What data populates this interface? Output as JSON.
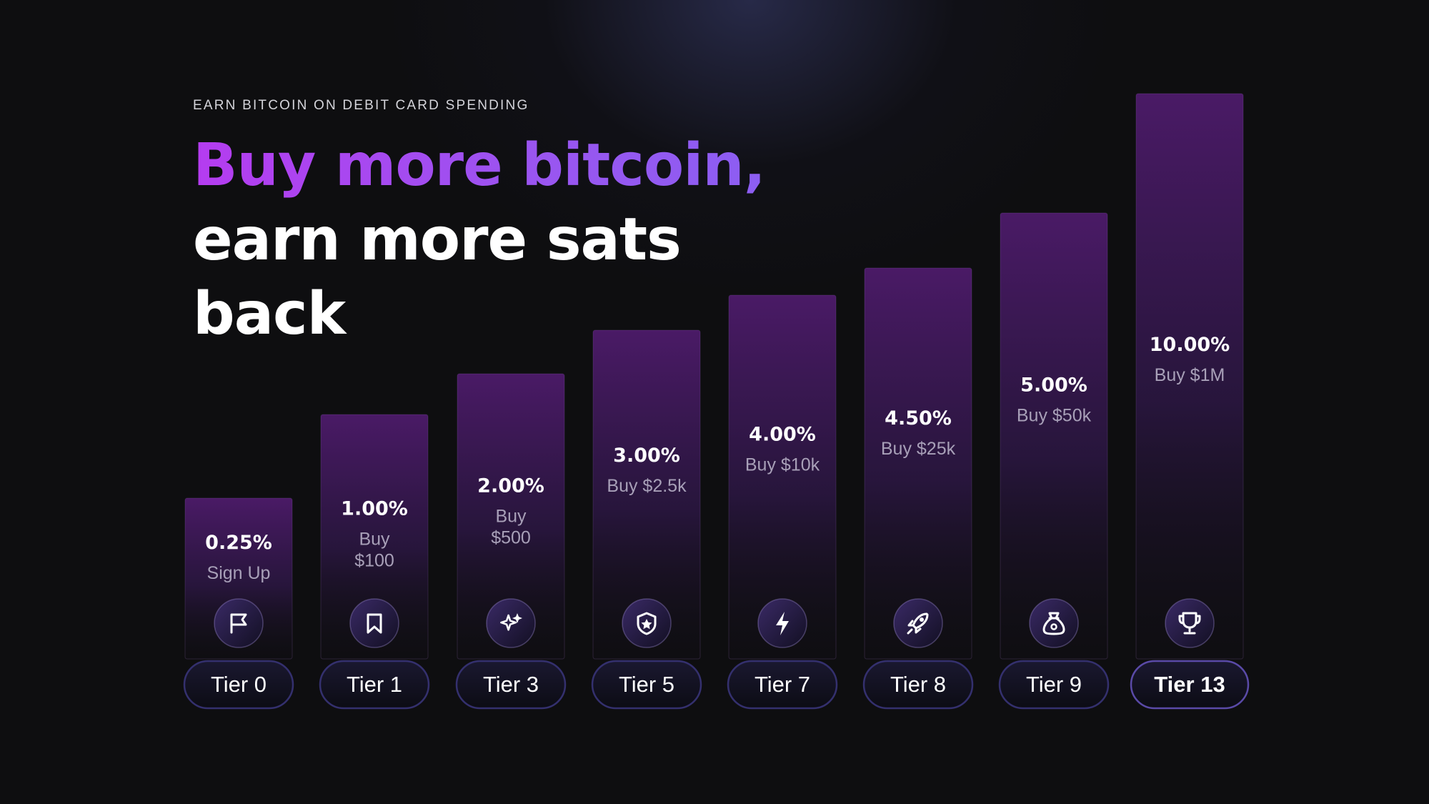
{
  "header": {
    "eyebrow": "EARN BITCOIN ON DEBIT CARD SPENDING",
    "headline_accent": "Buy more bitcoin,",
    "headline_line2": "earn more sats",
    "headline_line3": "back"
  },
  "colors": {
    "background": "#0e0e10",
    "accent_purple": "#a94af0",
    "bar_top": "#4a1a66",
    "pill_border": "#3a3580",
    "label_muted": "#a8a0b8"
  },
  "chart_data": {
    "type": "bar",
    "categories": [
      "Tier 0",
      "Tier 1",
      "Tier 3",
      "Tier 5",
      "Tier 7",
      "Tier 8",
      "Tier 9",
      "Tier 13"
    ],
    "values": [
      0.25,
      1.0,
      2.0,
      3.0,
      4.0,
      4.5,
      5.0,
      10.0
    ],
    "value_labels": [
      "0.25%",
      "1.00%",
      "2.00%",
      "3.00%",
      "4.00%",
      "4.50%",
      "5.00%",
      "10.00%"
    ],
    "requirements": [
      [
        "Sign Up"
      ],
      [
        "Buy",
        "$100"
      ],
      [
        "Buy",
        "$500"
      ],
      [
        "Buy $2.5k"
      ],
      [
        "Buy $10k"
      ],
      [
        "Buy $25k"
      ],
      [
        "Buy $50k"
      ],
      [
        "Buy $1M"
      ]
    ],
    "icons": [
      "flag-icon",
      "bookmark-icon",
      "sparkles-icon",
      "shield-star-icon",
      "lightning-icon",
      "rocket-icon",
      "money-bag-icon",
      "trophy-icon"
    ],
    "highlighted": "Tier 13",
    "grid": false,
    "legend": "none"
  }
}
